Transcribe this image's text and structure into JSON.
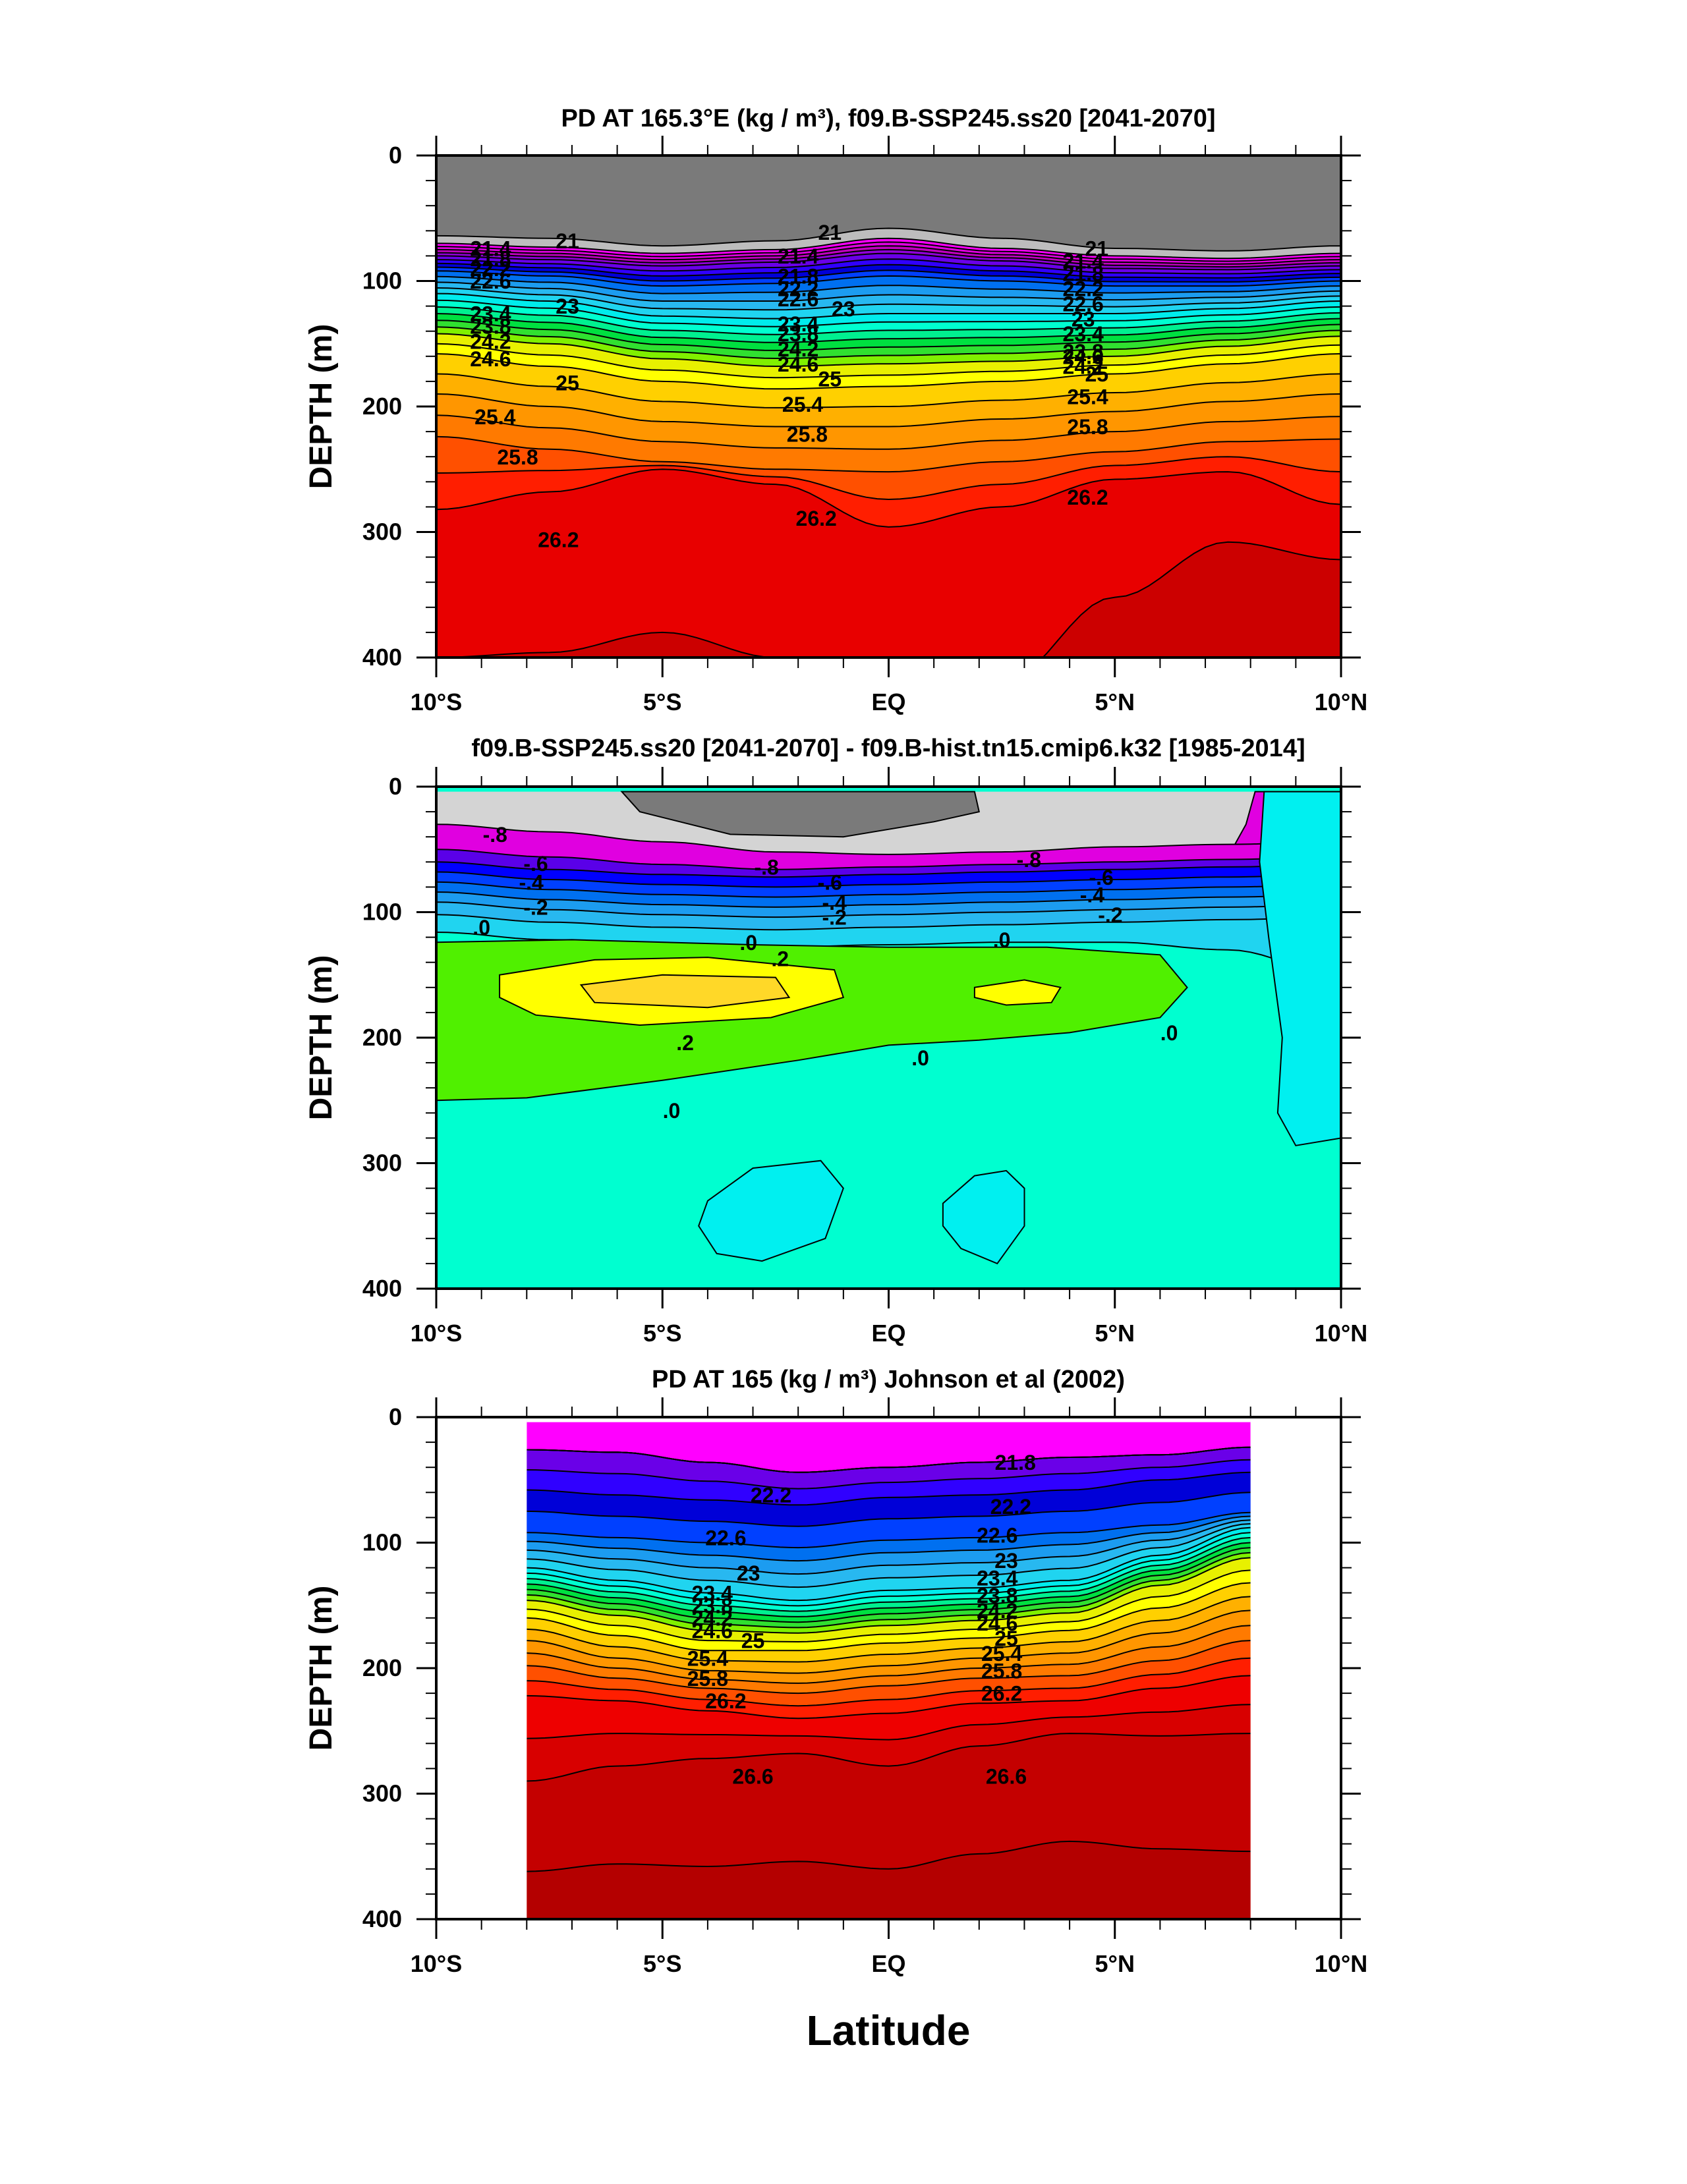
{
  "figure": {
    "xlabel": "Latitude"
  },
  "chart_data": [
    {
      "type": "contour",
      "title": "PD AT 165.3°E (kg / m³), f09.B-SSP245.ss20 [2041-2070]",
      "xlabel": "",
      "ylabel": "DEPTH (m)",
      "xlim": [
        -10,
        10
      ],
      "ylim": [
        400,
        0
      ],
      "x_ticks": [
        -10,
        -5,
        0,
        5,
        10
      ],
      "x_tick_labels": [
        "10°S",
        "5°S",
        "EQ",
        "5°N",
        "10°N"
      ],
      "y_ticks": [
        0,
        100,
        200,
        300,
        400
      ],
      "y_tick_labels": [
        "0",
        "100",
        "200",
        "300",
        "400"
      ],
      "data_extent": [
        -10,
        10
      ],
      "levels": [
        20.6,
        21,
        21.2,
        21.4,
        21.6,
        21.8,
        22,
        22.2,
        22.4,
        22.6,
        22.8,
        23,
        23.2,
        23.4,
        23.6,
        23.8,
        24,
        24.2,
        24.4,
        24.6,
        24.8,
        25,
        25.2,
        25.4,
        25.6,
        25.8,
        26,
        26.2,
        26.6
      ],
      "colors": [
        "#7a7a7a",
        "#bdbdbd",
        "#ff00ff",
        "#e000e0",
        "#c000c0",
        "#9000d8",
        "#6a00e8",
        "#3000ff",
        "#0000d8",
        "#0040ff",
        "#0070f0",
        "#1c9cf0",
        "#28b8f0",
        "#20d4f0",
        "#00ecec",
        "#00ffd0",
        "#00f090",
        "#00e040",
        "#30e030",
        "#80f000",
        "#e8f000",
        "#ffff00",
        "#ffd000",
        "#ffb000",
        "#ff9600",
        "#ff7a00",
        "#ff5000",
        "#ff1e00",
        "#e80000",
        "#cc0000"
      ],
      "depth_profile": {
        "lat": [
          -10,
          -7.5,
          -5,
          -2.5,
          0,
          2.5,
          5,
          7.5,
          10
        ],
        "isopycnal_depth": {
          "20.6": [
            64,
            66,
            72,
            68,
            58,
            66,
            74,
            76,
            72
          ],
          "21": [
            70,
            73,
            78,
            75,
            66,
            74,
            80,
            82,
            78
          ],
          "21.8": [
            80,
            83,
            88,
            85,
            78,
            84,
            90,
            91,
            88
          ],
          "22.6": [
            92,
            96,
            104,
            102,
            96,
            100,
            104,
            104,
            100
          ],
          "23.4": [
            110,
            116,
            128,
            130,
            126,
            126,
            126,
            122,
            116
          ],
          "24.6": [
            142,
            150,
            162,
            168,
            166,
            164,
            160,
            152,
            144
          ],
          "25": [
            158,
            168,
            180,
            186,
            184,
            180,
            174,
            166,
            158
          ],
          "25.4": [
            190,
            200,
            212,
            216,
            216,
            210,
            204,
            196,
            190
          ],
          "25.8": [
            224,
            234,
            244,
            250,
            252,
            244,
            236,
            228,
            226
          ],
          "26.2": [
            282,
            268,
            250,
            262,
            296,
            280,
            258,
            252,
            278
          ],
          "26.6": [
            400,
            396,
            380,
            400,
            460,
            420,
            352,
            308,
            322
          ]
        }
      },
      "contour_labels": [
        {
          "lat": -7.1,
          "depth": 72,
          "text": "21"
        },
        {
          "lat": -8.8,
          "depth": 78,
          "text": "21.4"
        },
        {
          "lat": -8.8,
          "depth": 86,
          "text": "21.8"
        },
        {
          "lat": -8.8,
          "depth": 94,
          "text": "22.2"
        },
        {
          "lat": -8.8,
          "depth": 104,
          "text": "22.6"
        },
        {
          "lat": -7.1,
          "depth": 124,
          "text": "23"
        },
        {
          "lat": -8.8,
          "depth": 130,
          "text": "23.4"
        },
        {
          "lat": -8.8,
          "depth": 140,
          "text": "23.8"
        },
        {
          "lat": -8.8,
          "depth": 152,
          "text": "24.2"
        },
        {
          "lat": -8.8,
          "depth": 166,
          "text": "24.6"
        },
        {
          "lat": -7.1,
          "depth": 185,
          "text": "25"
        },
        {
          "lat": -8.7,
          "depth": 212,
          "text": "25.4"
        },
        {
          "lat": -8.2,
          "depth": 244,
          "text": "25.8"
        },
        {
          "lat": -7.3,
          "depth": 310,
          "text": "26.2"
        },
        {
          "lat": -1.3,
          "depth": 65,
          "text": "21"
        },
        {
          "lat": -2.0,
          "depth": 84,
          "text": "21.4"
        },
        {
          "lat": -2.0,
          "depth": 100,
          "text": "21.8"
        },
        {
          "lat": -2.0,
          "depth": 110,
          "text": "22.2"
        },
        {
          "lat": -2.0,
          "depth": 118,
          "text": "22.6"
        },
        {
          "lat": -1.0,
          "depth": 126,
          "text": "23"
        },
        {
          "lat": -2.0,
          "depth": 138,
          "text": "23.4"
        },
        {
          "lat": -2.0,
          "depth": 146,
          "text": "23.8"
        },
        {
          "lat": -2.0,
          "depth": 158,
          "text": "24.2"
        },
        {
          "lat": -2.0,
          "depth": 170,
          "text": "24.6"
        },
        {
          "lat": -1.3,
          "depth": 182,
          "text": "25"
        },
        {
          "lat": -1.9,
          "depth": 202,
          "text": "25.4"
        },
        {
          "lat": -1.8,
          "depth": 226,
          "text": "25.8"
        },
        {
          "lat": -1.6,
          "depth": 293,
          "text": "26.2"
        },
        {
          "lat": 4.6,
          "depth": 78,
          "text": "21"
        },
        {
          "lat": 4.3,
          "depth": 88,
          "text": "21.4"
        },
        {
          "lat": 4.3,
          "depth": 98,
          "text": "21.8"
        },
        {
          "lat": 4.3,
          "depth": 110,
          "text": "22.2"
        },
        {
          "lat": 4.3,
          "depth": 122,
          "text": "22.6"
        },
        {
          "lat": 4.3,
          "depth": 134,
          "text": "23"
        },
        {
          "lat": 4.3,
          "depth": 146,
          "text": "23.4"
        },
        {
          "lat": 4.3,
          "depth": 160,
          "text": "23.8"
        },
        {
          "lat": 4.3,
          "depth": 172,
          "text": "24.2"
        },
        {
          "lat": 4.3,
          "depth": 164,
          "text": "24.6"
        },
        {
          "lat": 4.6,
          "depth": 178,
          "text": "25"
        },
        {
          "lat": 4.4,
          "depth": 196,
          "text": "25.4"
        },
        {
          "lat": 4.4,
          "depth": 220,
          "text": "25.8"
        },
        {
          "lat": 4.4,
          "depth": 276,
          "text": "26.2"
        }
      ]
    },
    {
      "type": "contour",
      "title": "f09.B-SSP245.ss20 [2041-2070] - f09.B-hist.tn15.cmip6.k32 [1985-2014]",
      "xlabel": "",
      "ylabel": "DEPTH (m)",
      "xlim": [
        -10,
        10
      ],
      "ylim": [
        400,
        0
      ],
      "x_ticks": [
        -10,
        -5,
        0,
        5,
        10
      ],
      "x_tick_labels": [
        "10°S",
        "5°S",
        "EQ",
        "5°N",
        "10°N"
      ],
      "y_ticks": [
        0,
        100,
        200,
        300,
        400
      ],
      "y_tick_labels": [
        "0",
        "100",
        "200",
        "300",
        "400"
      ],
      "data_extent": [
        -10,
        10
      ],
      "levels": [
        -1.2,
        -1.0,
        -0.8,
        -0.7,
        -0.6,
        -0.5,
        -0.4,
        -0.3,
        -0.2,
        -0.1,
        0.0,
        0.1,
        0.2,
        0.3
      ],
      "colors": [
        "#7a7a7a",
        "#d4d4d4",
        "#e000e0",
        "#5a00e8",
        "#0000ff",
        "#0040ff",
        "#0070f0",
        "#1c9cf0",
        "#28b8f0",
        "#20d4f0",
        "#00ffd0",
        "#00f0f0",
        "#50f000",
        "#ffff00",
        "#ffd828"
      ],
      "contour_labels": [
        {
          "lat": -8.7,
          "depth": 42,
          "text": "-.8"
        },
        {
          "lat": -2.7,
          "depth": 68,
          "text": "-.8"
        },
        {
          "lat": 3.1,
          "depth": 62,
          "text": "-.8"
        },
        {
          "lat": -7.8,
          "depth": 65,
          "text": "-.6"
        },
        {
          "lat": -1.3,
          "depth": 80,
          "text": "-.6"
        },
        {
          "lat": 4.7,
          "depth": 76,
          "text": "-.6"
        },
        {
          "lat": -7.9,
          "depth": 80,
          "text": "-.4"
        },
        {
          "lat": -1.2,
          "depth": 96,
          "text": "-.4"
        },
        {
          "lat": 4.5,
          "depth": 90,
          "text": "-.4"
        },
        {
          "lat": -7.8,
          "depth": 100,
          "text": "-.2"
        },
        {
          "lat": -1.2,
          "depth": 108,
          "text": "-.2"
        },
        {
          "lat": 4.9,
          "depth": 106,
          "text": "-.2"
        },
        {
          "lat": -9.0,
          "depth": 116,
          "text": ".0"
        },
        {
          "lat": -3.1,
          "depth": 128,
          "text": ".0"
        },
        {
          "lat": 2.5,
          "depth": 126,
          "text": ".0"
        },
        {
          "lat": -2.4,
          "depth": 141,
          "text": ".2"
        },
        {
          "lat": -4.5,
          "depth": 208,
          "text": ".2"
        },
        {
          "lat": 0.7,
          "depth": 220,
          "text": ".0"
        },
        {
          "lat": 6.2,
          "depth": 200,
          "text": ".0"
        },
        {
          "lat": -4.8,
          "depth": 262,
          "text": ".0"
        }
      ]
    },
    {
      "type": "contour",
      "title": "PD AT 165 (kg / m³) Johnson et al (2002)",
      "xlabel": "",
      "ylabel": "DEPTH (m)",
      "xlim": [
        -10,
        10
      ],
      "ylim": [
        400,
        0
      ],
      "x_ticks": [
        -10,
        -5,
        0,
        5,
        10
      ],
      "x_tick_labels": [
        "10°S",
        "5°S",
        "EQ",
        "5°N",
        "10°N"
      ],
      "y_ticks": [
        0,
        100,
        200,
        300,
        400
      ],
      "y_tick_labels": [
        "0",
        "100",
        "200",
        "300",
        "400"
      ],
      "data_extent": [
        -8,
        8
      ],
      "levels": [
        21.2,
        21.4,
        21.6,
        21.8,
        22,
        22.2,
        22.4,
        22.6,
        22.8,
        23,
        23.2,
        23.4,
        23.6,
        23.8,
        24,
        24.2,
        24.4,
        24.6,
        24.8,
        25,
        25.2,
        25.4,
        25.6,
        25.8,
        26,
        26.2,
        26.4,
        26.6,
        26.8
      ],
      "colors": [
        "#ff00ff",
        "#e000e0",
        "#c000c0",
        "#9000d8",
        "#6a00e8",
        "#3000ff",
        "#0000d8",
        "#0040ff",
        "#0070f0",
        "#1c9cf0",
        "#28b8f0",
        "#20d4f0",
        "#00ecec",
        "#00ffd0",
        "#00f090",
        "#00e040",
        "#30e030",
        "#80f000",
        "#e8f000",
        "#ffff00",
        "#ffd000",
        "#ffb000",
        "#ff9600",
        "#ff7a00",
        "#ff5000",
        "#ff1e00",
        "#ee0000",
        "#d80000",
        "#c40000",
        "#b40000"
      ],
      "depth_profile": {
        "lat": [
          -8,
          -6,
          -4,
          -2,
          0,
          2,
          4,
          6,
          8
        ],
        "isopycnal_depth": {
          "21.8": [
            26,
            28,
            36,
            44,
            40,
            36,
            32,
            30,
            24
          ],
          "22.2": [
            58,
            62,
            66,
            70,
            64,
            62,
            58,
            50,
            44
          ],
          "22.6": [
            92,
            96,
            100,
            104,
            98,
            96,
            92,
            86,
            76
          ],
          "23.4": [
            120,
            130,
            140,
            146,
            138,
            136,
            130,
            110,
            88
          ],
          "24.6": [
            146,
            158,
            170,
            172,
            166,
            162,
            156,
            134,
            112
          ],
          "25": [
            160,
            174,
            186,
            186,
            180,
            176,
            170,
            152,
            132
          ],
          "25.4": [
            178,
            192,
            202,
            204,
            198,
            192,
            188,
            172,
            154
          ],
          "25.8": [
            198,
            208,
            216,
            220,
            214,
            208,
            206,
            194,
            178
          ],
          "26.2": [
            222,
            226,
            234,
            240,
            236,
            228,
            226,
            216,
            206
          ],
          "26.6": [
            290,
            278,
            272,
            268,
            278,
            262,
            252,
            254,
            252
          ],
          "26.8": [
            362,
            356,
            358,
            354,
            360,
            348,
            338,
            344,
            346
          ]
        }
      },
      "contour_labels": [
        {
          "lat": 2.8,
          "depth": 40,
          "text": "21.8"
        },
        {
          "lat": -2.6,
          "depth": 66,
          "text": "22.2"
        },
        {
          "lat": 2.7,
          "depth": 75,
          "text": "22.2"
        },
        {
          "lat": -3.6,
          "depth": 100,
          "text": "22.6"
        },
        {
          "lat": 2.4,
          "depth": 98,
          "text": "22.6"
        },
        {
          "lat": -3.1,
          "depth": 128,
          "text": "23"
        },
        {
          "lat": 2.6,
          "depth": 118,
          "text": "23"
        },
        {
          "lat": -3.9,
          "depth": 144,
          "text": "23.4"
        },
        {
          "lat": 2.4,
          "depth": 132,
          "text": "23.4"
        },
        {
          "lat": -3.9,
          "depth": 154,
          "text": "23.8"
        },
        {
          "lat": 2.4,
          "depth": 146,
          "text": "23.8"
        },
        {
          "lat": -3.9,
          "depth": 164,
          "text": "24.2"
        },
        {
          "lat": 2.4,
          "depth": 158,
          "text": "24.2"
        },
        {
          "lat": -3.9,
          "depth": 174,
          "text": "24.6"
        },
        {
          "lat": 2.4,
          "depth": 168,
          "text": "24.6"
        },
        {
          "lat": -3.0,
          "depth": 182,
          "text": "25"
        },
        {
          "lat": 2.6,
          "depth": 180,
          "text": "25"
        },
        {
          "lat": -4.0,
          "depth": 196,
          "text": "25.4"
        },
        {
          "lat": 2.5,
          "depth": 192,
          "text": "25.4"
        },
        {
          "lat": -4.0,
          "depth": 212,
          "text": "25.8"
        },
        {
          "lat": 2.5,
          "depth": 206,
          "text": "25.8"
        },
        {
          "lat": -3.6,
          "depth": 230,
          "text": "26.2"
        },
        {
          "lat": 2.5,
          "depth": 224,
          "text": "26.2"
        },
        {
          "lat": -3.0,
          "depth": 290,
          "text": "26.6"
        },
        {
          "lat": 2.6,
          "depth": 290,
          "text": "26.6"
        }
      ]
    }
  ]
}
